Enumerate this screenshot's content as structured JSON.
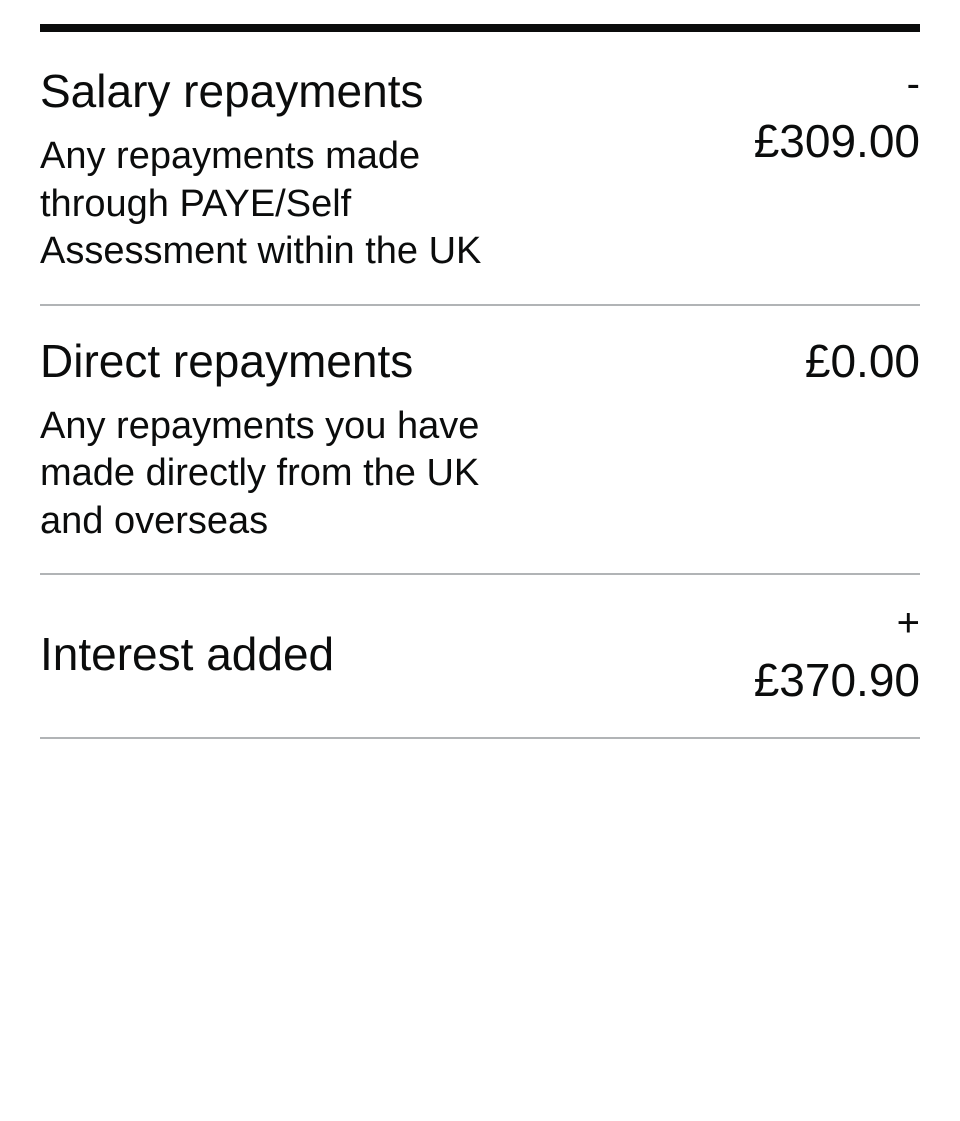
{
  "colors": {
    "text": "#0b0c0c",
    "border_top": "#0b0c0c",
    "border_divider": "#b1b4b6",
    "background": "#ffffff"
  },
  "typography": {
    "title_fontsize": 46,
    "desc_fontsize": 38,
    "amount_fontsize": 46,
    "font_family": "Helvetica Neue, Arial, sans-serif"
  },
  "rows": [
    {
      "title": "Salary repayments",
      "desc": "Any repayments made through PAYE/Self Assessment within the UK",
      "sign": "-",
      "amount": "£309.00"
    },
    {
      "title": "Direct repayments",
      "desc": "Any repayments you have made directly from the UK and overseas",
      "sign": "",
      "amount": "£0.00"
    },
    {
      "title": "Interest added",
      "desc": "",
      "sign": "+",
      "amount": "£370.90"
    }
  ]
}
